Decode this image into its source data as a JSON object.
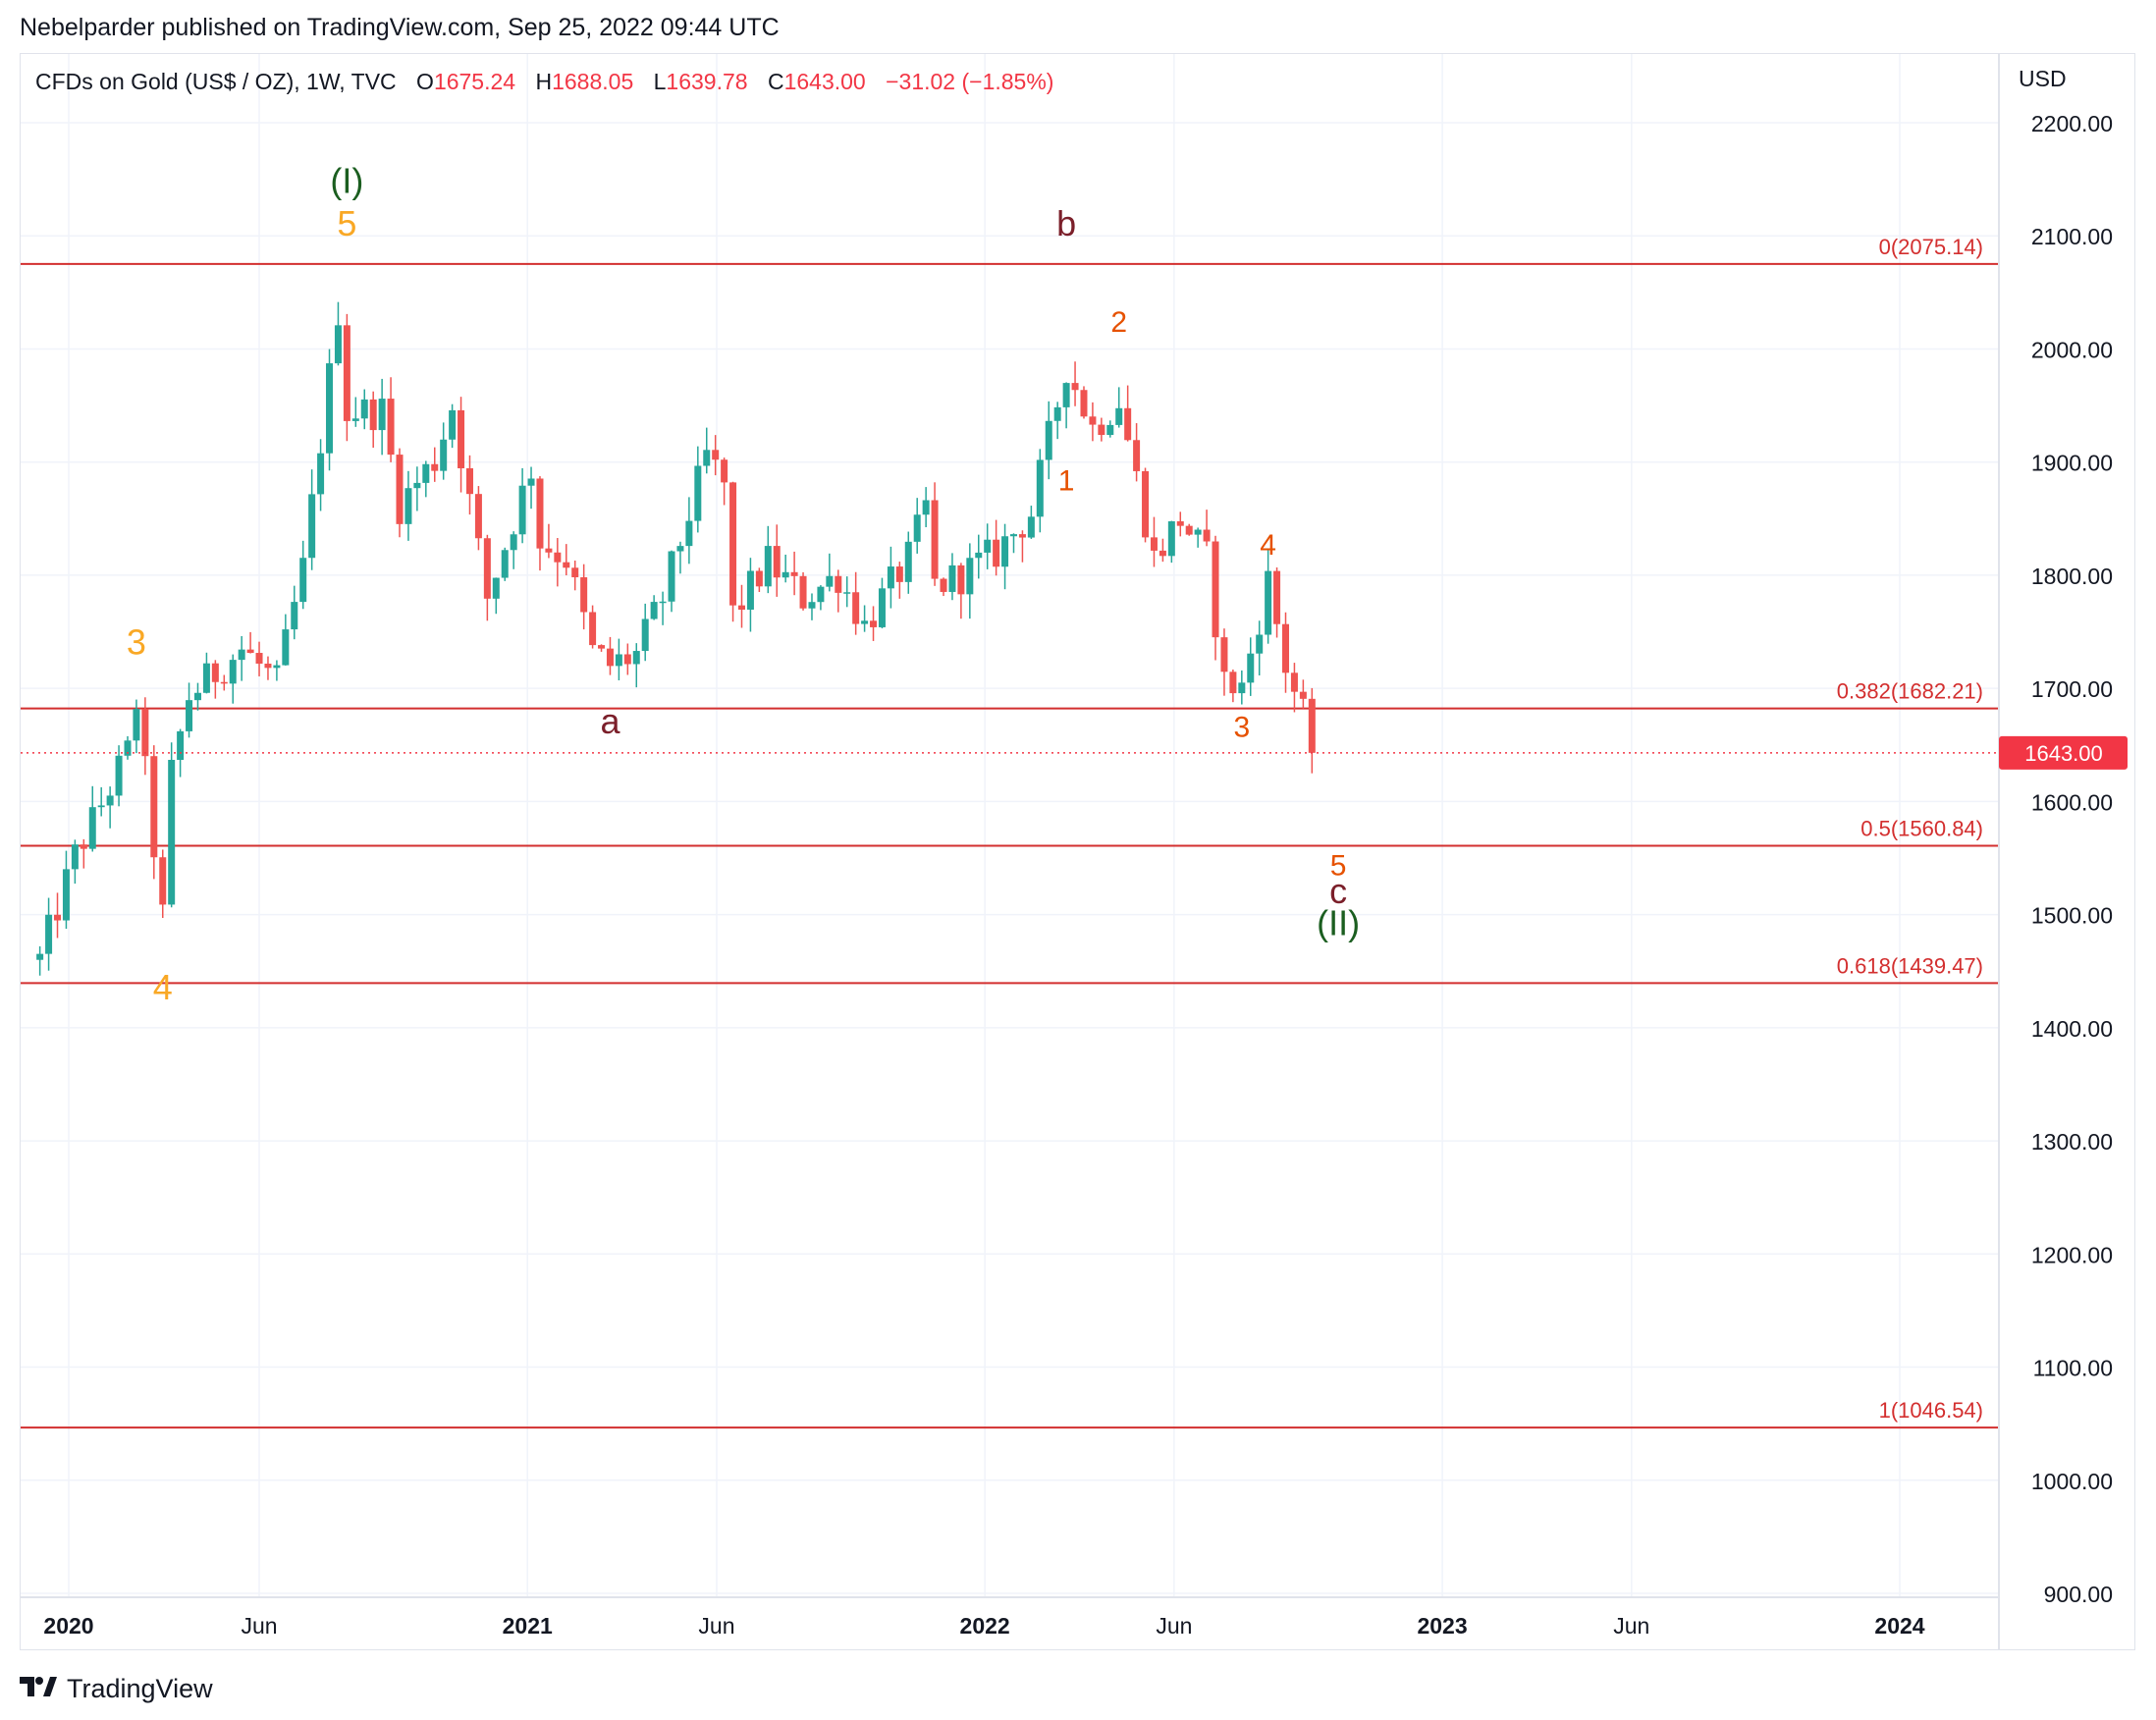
{
  "header": {
    "publisher": "Nebelparder published on TradingView.com, Sep 25, 2022 09:44 UTC"
  },
  "symbol": {
    "name": "CFDs on Gold (US$ / OZ), 1W, TVC",
    "open_label": "O",
    "open": "1675.24",
    "high_label": "H",
    "high": "1688.05",
    "low_label": "L",
    "low": "1639.78",
    "close_label": "C",
    "close": "1643.00",
    "change": "−31.02 (−1.85%)"
  },
  "footer": {
    "brand": "TradingView",
    "logo_icon": "tradingview-logo-icon"
  },
  "colors": {
    "up": "#26a69a",
    "down": "#ef5350",
    "fib": "#d32f2f",
    "grid": "#f0f3fa",
    "last_price_bg": "#f23645"
  },
  "chart_data": {
    "type": "candlestick",
    "currency": "USD",
    "x_axis_ticks": [
      "2020",
      "Jun",
      "2021",
      "Jun",
      "2022",
      "Jun",
      "2023",
      "Jun",
      "2024"
    ],
    "y_axis_ticks": [
      "2200.00",
      "2100.00",
      "2000.00",
      "1900.00",
      "1800.00",
      "1700.00",
      "1600.00",
      "1500.00",
      "1400.00",
      "1300.00",
      "1200.00",
      "1100.00",
      "1000.00",
      "900.00"
    ],
    "ylim": [
      900,
      2200
    ],
    "last_price": "1643.00",
    "fib_levels": [
      {
        "label": "0(2075.14)",
        "value": 2075.14
      },
      {
        "label": "0.382(1682.21)",
        "value": 1682.21
      },
      {
        "label": "0.5(1560.84)",
        "value": 1560.84
      },
      {
        "label": "0.618(1439.47)",
        "value": 1439.47
      },
      {
        "label": "1(1046.54)",
        "value": 1046.54
      }
    ],
    "wave_labels": [
      {
        "text": "(I)",
        "date": "2020-08-10",
        "price": 2138,
        "color": "#1b5e20"
      },
      {
        "text": "5",
        "date": "2020-08-10",
        "price": 2100,
        "color": "#f9a825"
      },
      {
        "text": "3",
        "date": "2020-02-24",
        "price": 1730,
        "color": "#f9a825"
      },
      {
        "text": "4",
        "date": "2020-03-16",
        "price": 1425,
        "color": "#f9a825"
      },
      {
        "text": "a",
        "date": "2021-03-08",
        "price": 1660,
        "color": "#7b1f2a"
      },
      {
        "text": "b",
        "date": "2022-03-07",
        "price": 2100,
        "color": "#7b1f2a"
      },
      {
        "text": "1",
        "date": "2022-03-07",
        "price": 1875,
        "color": "#e65100"
      },
      {
        "text": "2",
        "date": "2022-04-18",
        "price": 2015,
        "color": "#e65100"
      },
      {
        "text": "3",
        "date": "2022-07-25",
        "price": 1657,
        "color": "#e65100"
      },
      {
        "text": "4",
        "date": "2022-08-15",
        "price": 1818,
        "color": "#e65100"
      },
      {
        "text": "5",
        "date": "2022-10-10",
        "price": 1535,
        "color": "#e65100"
      },
      {
        "text": "c",
        "date": "2022-10-10",
        "price": 1510,
        "color": "#7b1f2a"
      },
      {
        "text": "(II)",
        "date": "2022-10-10",
        "price": 1482,
        "color": "#1b5e20"
      }
    ],
    "anchors": [
      {
        "date": "2019-12-09",
        "price": 1460
      },
      {
        "date": "2020-01-06",
        "price": 1552
      },
      {
        "date": "2020-02-17",
        "price": 1643
      },
      {
        "date": "2020-02-24",
        "price": 1688
      },
      {
        "date": "2020-03-09",
        "price": 1560
      },
      {
        "date": "2020-03-16",
        "price": 1498
      },
      {
        "date": "2020-03-23",
        "price": 1625
      },
      {
        "date": "2020-04-06",
        "price": 1693
      },
      {
        "date": "2020-05-18",
        "price": 1735
      },
      {
        "date": "2020-06-15",
        "price": 1705
      },
      {
        "date": "2020-07-06",
        "price": 1805
      },
      {
        "date": "2020-07-27",
        "price": 1975
      },
      {
        "date": "2020-08-03",
        "price": 2035
      },
      {
        "date": "2020-08-10",
        "price": 1945
      },
      {
        "date": "2020-09-07",
        "price": 1945
      },
      {
        "date": "2020-09-21",
        "price": 1862
      },
      {
        "date": "2020-10-19",
        "price": 1902
      },
      {
        "date": "2020-11-02",
        "price": 1950
      },
      {
        "date": "2020-11-30",
        "price": 1780
      },
      {
        "date": "2021-01-04",
        "price": 1895
      },
      {
        "date": "2021-01-11",
        "price": 1830
      },
      {
        "date": "2021-02-01",
        "price": 1815
      },
      {
        "date": "2021-02-22",
        "price": 1732
      },
      {
        "date": "2021-03-08",
        "price": 1720
      },
      {
        "date": "2021-03-29",
        "price": 1730
      },
      {
        "date": "2021-04-19",
        "price": 1780
      },
      {
        "date": "2021-05-24",
        "price": 1905
      },
      {
        "date": "2021-06-07",
        "price": 1880
      },
      {
        "date": "2021-06-14",
        "price": 1765
      },
      {
        "date": "2021-07-12",
        "price": 1812
      },
      {
        "date": "2021-08-09",
        "price": 1780
      },
      {
        "date": "2021-09-06",
        "price": 1800
      },
      {
        "date": "2021-09-27",
        "price": 1755
      },
      {
        "date": "2021-11-01",
        "price": 1815
      },
      {
        "date": "2021-11-15",
        "price": 1860
      },
      {
        "date": "2021-11-22",
        "price": 1790
      },
      {
        "date": "2021-12-13",
        "price": 1800
      },
      {
        "date": "2022-01-10",
        "price": 1820
      },
      {
        "date": "2022-02-07",
        "price": 1855
      },
      {
        "date": "2022-03-07",
        "price": 1985
      },
      {
        "date": "2022-03-28",
        "price": 1930
      },
      {
        "date": "2022-04-18",
        "price": 1955
      },
      {
        "date": "2022-05-02",
        "price": 1885
      },
      {
        "date": "2022-05-16",
        "price": 1815
      },
      {
        "date": "2022-06-06",
        "price": 1850
      },
      {
        "date": "2022-06-27",
        "price": 1815
      },
      {
        "date": "2022-07-11",
        "price": 1705
      },
      {
        "date": "2022-07-25",
        "price": 1700
      },
      {
        "date": "2022-08-15",
        "price": 1795
      },
      {
        "date": "2022-08-29",
        "price": 1720
      },
      {
        "date": "2022-09-12",
        "price": 1675
      },
      {
        "date": "2022-09-19",
        "price": 1643
      }
    ]
  }
}
